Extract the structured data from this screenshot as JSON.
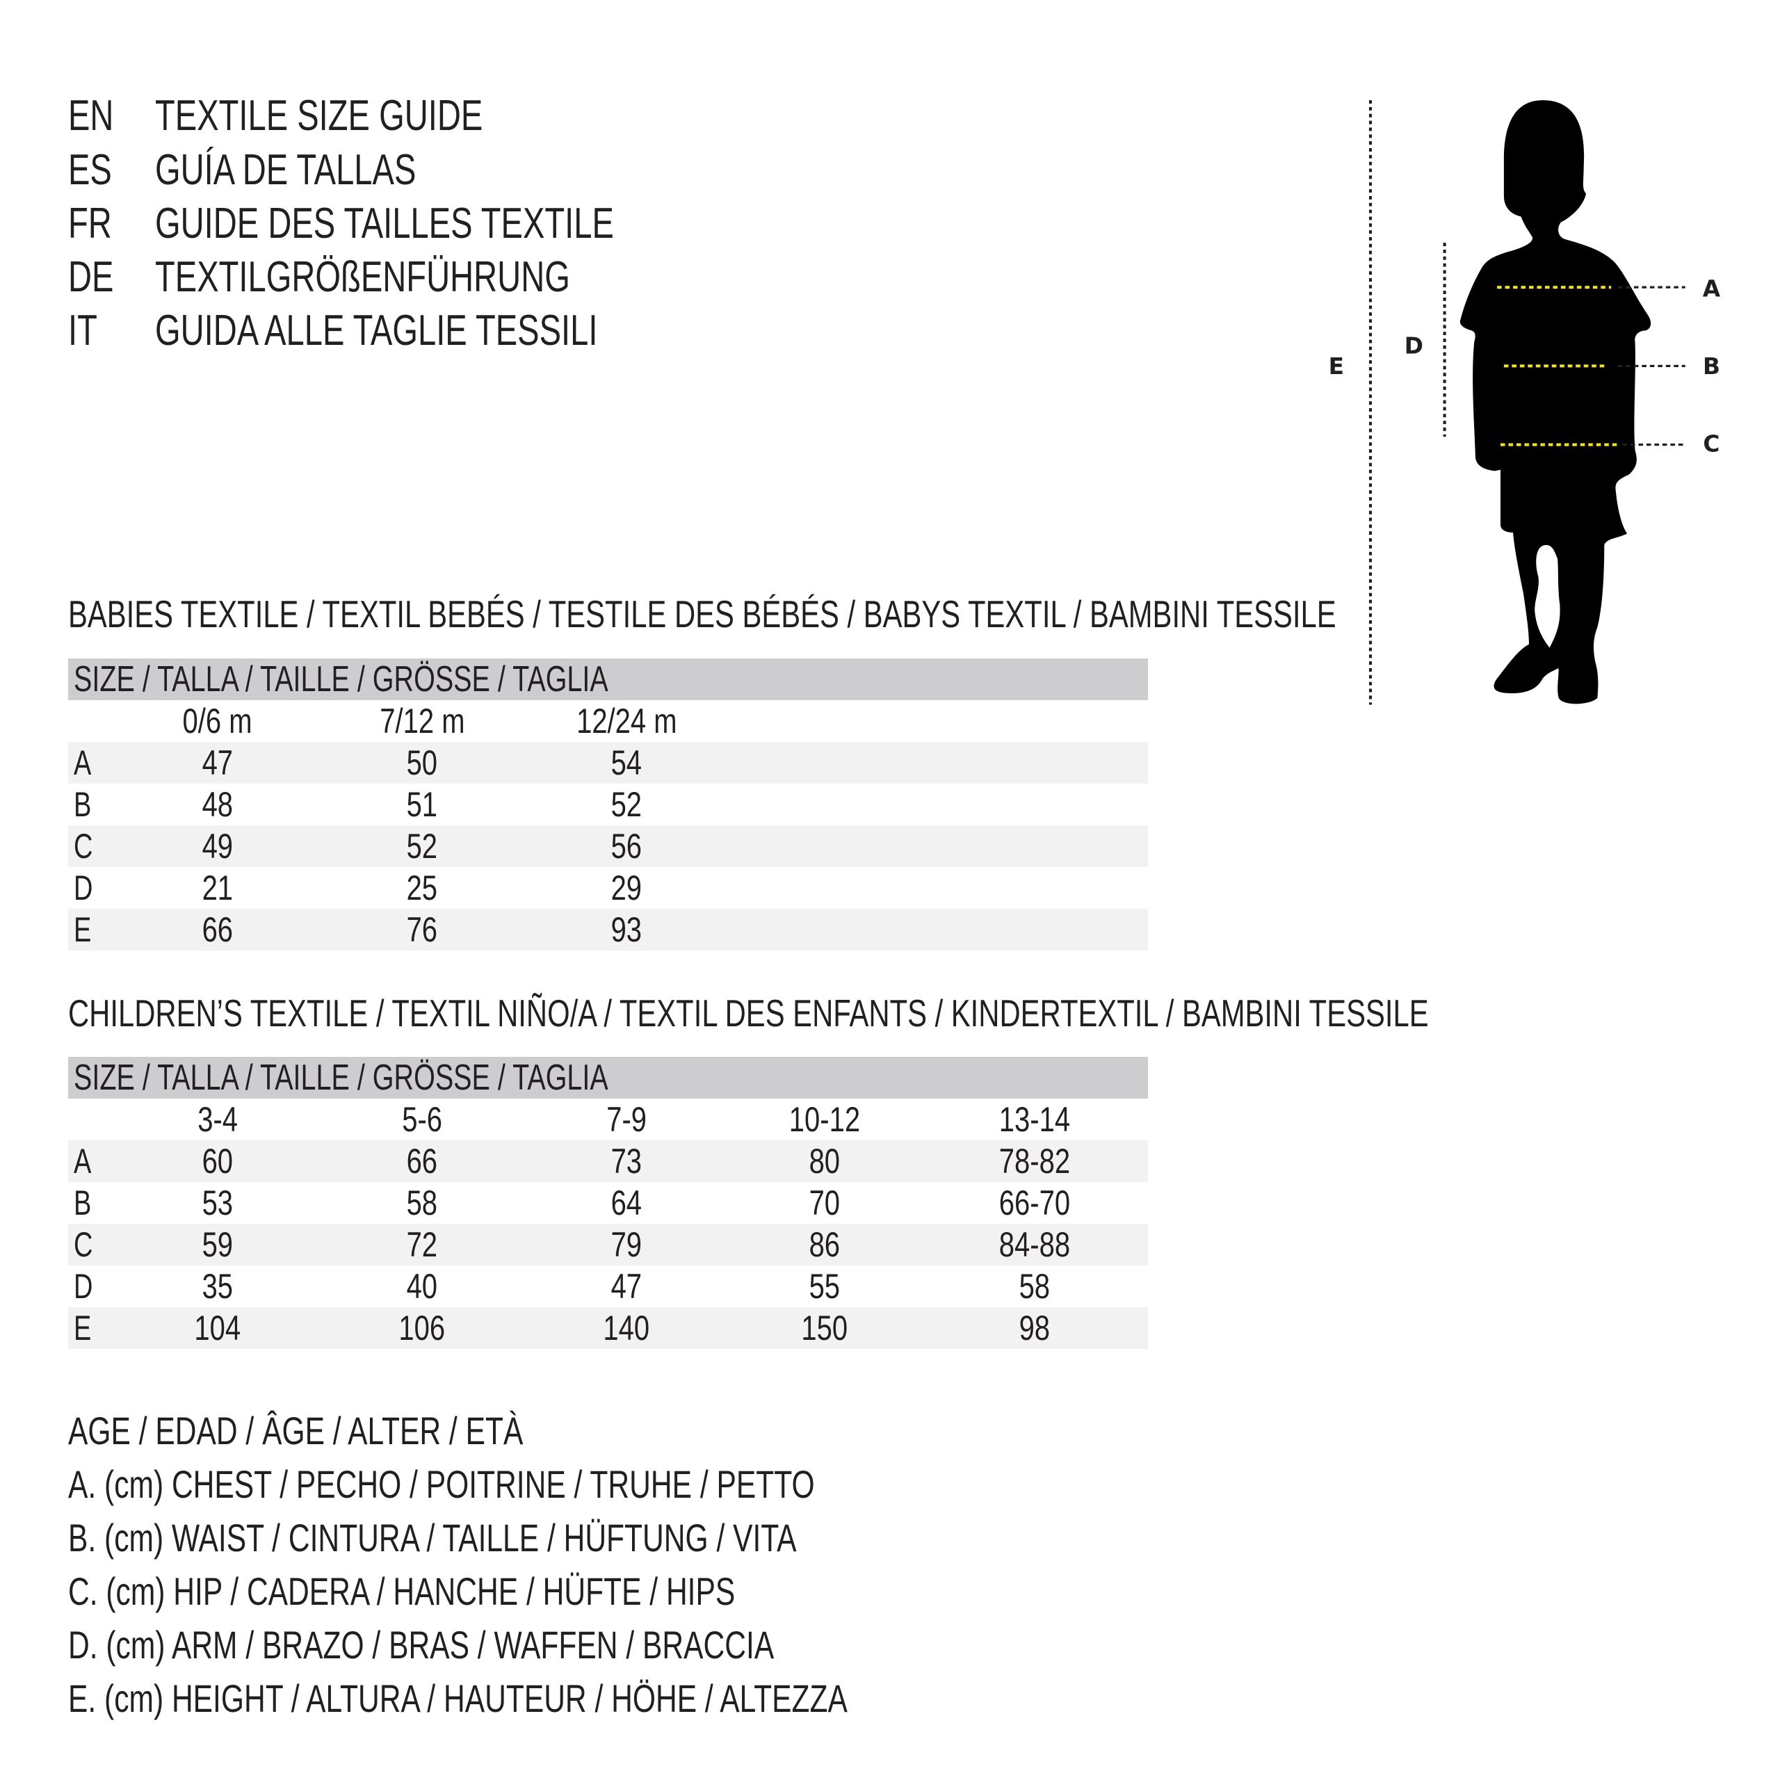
{
  "titles": [
    {
      "code": "EN",
      "text": "TEXTILE SIZE GUIDE"
    },
    {
      "code": "ES",
      "text": "GUÍA DE TALLAS"
    },
    {
      "code": "FR",
      "text": "GUIDE DES TAILLES TEXTILE"
    },
    {
      "code": "DE",
      "text": "TEXTILGRÖßENFÜHRUNG"
    },
    {
      "code": "IT",
      "text": "GUIDA ALLE TAGLIE TESSILI"
    }
  ],
  "babies": {
    "heading": "BABIES TEXTILE / TEXTIL BEBÉS / TESTILE DES BÉBÉS / BABYS TEXTIL / BAMBINI TESSILE",
    "size_label": "SIZE / TALLA / TAILLE / GRÖSSE / TAGLIA",
    "columns": [
      "0/6 m",
      "7/12 m",
      "12/24 m"
    ],
    "rows": [
      {
        "label": "A",
        "values": [
          "47",
          "50",
          "54"
        ]
      },
      {
        "label": "B",
        "values": [
          "48",
          "51",
          "52"
        ]
      },
      {
        "label": "C",
        "values": [
          "49",
          "52",
          "56"
        ]
      },
      {
        "label": "D",
        "values": [
          "21",
          "25",
          "29"
        ]
      },
      {
        "label": "E",
        "values": [
          "66",
          "76",
          "93"
        ]
      }
    ]
  },
  "children": {
    "heading": "CHILDREN’S TEXTILE / TEXTIL NIÑO/A / TEXTIL DES ENFANTS / KINDERTEXTIL / BAMBINI TESSILE",
    "size_label": "SIZE / TALLA / TAILLE / GRÖSSE / TAGLIA",
    "columns": [
      "3-4",
      "5-6",
      "7-9",
      "10-12",
      "13-14"
    ],
    "rows": [
      {
        "label": "A",
        "values": [
          "60",
          "66",
          "73",
          "80",
          "78-82"
        ]
      },
      {
        "label": "B",
        "values": [
          "53",
          "58",
          "64",
          "70",
          "66-70"
        ]
      },
      {
        "label": "C",
        "values": [
          "59",
          "72",
          "79",
          "86",
          "84-88"
        ]
      },
      {
        "label": "D",
        "values": [
          "35",
          "40",
          "47",
          "55",
          "58"
        ]
      },
      {
        "label": "E",
        "values": [
          "104",
          "106",
          "140",
          "150",
          "98"
        ]
      }
    ]
  },
  "legend": [
    "AGE / EDAD / ÂGE / ALTER / ETÀ",
    "A. (cm) CHEST / PECHO / POITRINE / TRUHE / PETTO",
    "B. (cm) WAIST / CINTURA / TAILLE / HÜFTUNG / VITA",
    "C. (cm) HIP / CADERA / HANCHE / HÜFTE / HIPS",
    "D. (cm) ARM / BRAZO / BRAS / WAFFEN / BRACCIA",
    "E. (cm) HEIGHT / ALTURA / HAUTEUR / HÖHE / ALTEZZA"
  ],
  "figure": {
    "labels": {
      "A": "A",
      "B": "B",
      "C": "C",
      "D": "D",
      "E": "E"
    },
    "icon": "child-silhouette-icon",
    "colors": {
      "silhouette": "#000000",
      "measure_line": "#f2e21b",
      "guide_line": "#231f20",
      "header_bar": "#cdcdcf",
      "row_shade": "#f2f2f2"
    }
  }
}
